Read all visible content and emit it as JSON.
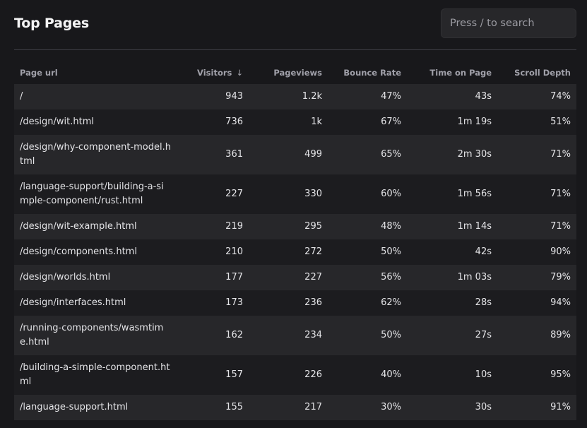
{
  "header": {
    "title": "Top Pages",
    "search_placeholder": "Press / to search"
  },
  "table": {
    "columns": {
      "url": "Page url",
      "visitors": "Visitors",
      "sort_indicator": "↓",
      "pageviews": "Pageviews",
      "bounce_rate": "Bounce Rate",
      "time_on_page": "Time on Page",
      "scroll_depth": "Scroll Depth"
    },
    "rows": [
      {
        "url": "/",
        "visitors": "943",
        "pageviews": "1.2k",
        "bounce_rate": "47%",
        "time_on_page": "43s",
        "scroll_depth": "74%"
      },
      {
        "url": "/design/wit.html",
        "visitors": "736",
        "pageviews": "1k",
        "bounce_rate": "67%",
        "time_on_page": "1m 19s",
        "scroll_depth": "51%"
      },
      {
        "url": "/design/why-component-model.html",
        "visitors": "361",
        "pageviews": "499",
        "bounce_rate": "65%",
        "time_on_page": "2m 30s",
        "scroll_depth": "71%"
      },
      {
        "url": "/language-support/building-a-simple-component/rust.html",
        "visitors": "227",
        "pageviews": "330",
        "bounce_rate": "60%",
        "time_on_page": "1m 56s",
        "scroll_depth": "71%"
      },
      {
        "url": "/design/wit-example.html",
        "visitors": "219",
        "pageviews": "295",
        "bounce_rate": "48%",
        "time_on_page": "1m 14s",
        "scroll_depth": "71%"
      },
      {
        "url": "/design/components.html",
        "visitors": "210",
        "pageviews": "272",
        "bounce_rate": "50%",
        "time_on_page": "42s",
        "scroll_depth": "90%"
      },
      {
        "url": "/design/worlds.html",
        "visitors": "177",
        "pageviews": "227",
        "bounce_rate": "56%",
        "time_on_page": "1m 03s",
        "scroll_depth": "79%"
      },
      {
        "url": "/design/interfaces.html",
        "visitors": "173",
        "pageviews": "236",
        "bounce_rate": "62%",
        "time_on_page": "28s",
        "scroll_depth": "94%"
      },
      {
        "url": "/running-components/wasmtime.html",
        "visitors": "162",
        "pageviews": "234",
        "bounce_rate": "50%",
        "time_on_page": "27s",
        "scroll_depth": "89%"
      },
      {
        "url": "/building-a-simple-component.html",
        "visitors": "157",
        "pageviews": "226",
        "bounce_rate": "40%",
        "time_on_page": "10s",
        "scroll_depth": "95%"
      },
      {
        "url": "/language-support.html",
        "visitors": "155",
        "pageviews": "217",
        "bounce_rate": "30%",
        "time_on_page": "30s",
        "scroll_depth": "91%"
      }
    ]
  }
}
